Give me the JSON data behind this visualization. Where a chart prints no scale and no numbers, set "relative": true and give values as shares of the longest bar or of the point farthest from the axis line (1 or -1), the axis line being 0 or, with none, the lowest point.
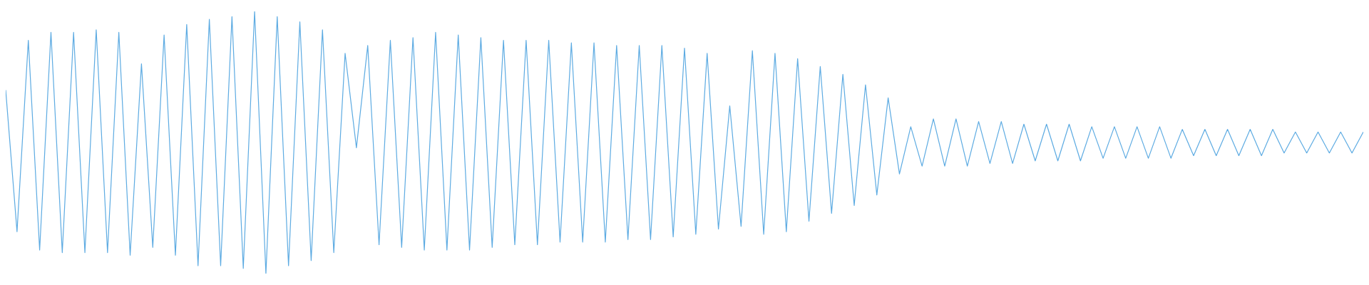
{
  "chart_data": {
    "type": "line",
    "relative": true,
    "color": "#5dabe2",
    "categories": [
      null,
      null,
      null,
      null,
      null,
      null,
      null,
      null,
      null,
      null,
      null,
      null,
      null,
      null,
      null,
      null,
      null,
      null,
      null,
      null,
      null,
      null,
      null,
      null,
      null,
      null,
      null,
      null,
      null,
      null,
      null,
      null,
      null,
      null,
      null,
      null,
      null,
      null,
      null,
      null,
      null,
      null,
      null,
      null,
      null,
      null,
      null,
      null,
      null,
      null,
      null,
      null,
      null,
      null,
      null,
      null,
      null,
      null,
      null,
      null,
      null,
      null,
      null,
      null,
      null,
      null,
      null,
      null,
      null,
      null,
      null,
      null,
      null,
      null,
      null,
      null,
      null,
      null,
      null,
      null,
      null,
      null,
      null,
      null,
      null,
      null,
      null,
      null,
      null,
      null,
      null,
      null,
      null,
      null,
      null,
      null,
      null,
      null,
      null,
      null,
      null,
      null,
      null,
      null,
      null,
      null,
      null,
      null,
      null,
      null,
      null,
      null,
      null,
      null,
      null,
      null,
      null,
      null,
      null,
      null,
      null
    ],
    "values": [
      0.7,
      0.16,
      0.89,
      0.09,
      0.92,
      0.08,
      0.92,
      0.08,
      0.93,
      0.08,
      0.92,
      0.07,
      0.8,
      0.1,
      0.91,
      0.07,
      0.95,
      0.03,
      0.97,
      0.03,
      0.98,
      0.02,
      1.0,
      0.0,
      0.98,
      0.03,
      0.96,
      0.05,
      0.93,
      0.08,
      0.84,
      0.48,
      0.87,
      0.11,
      0.89,
      0.1,
      0.9,
      0.09,
      0.92,
      0.09,
      0.91,
      0.09,
      0.9,
      0.1,
      0.89,
      0.11,
      0.89,
      0.11,
      0.89,
      0.12,
      0.88,
      0.12,
      0.88,
      0.12,
      0.87,
      0.13,
      0.87,
      0.13,
      0.87,
      0.14,
      0.86,
      0.15,
      0.84,
      0.17,
      0.64,
      0.18,
      0.85,
      0.15,
      0.84,
      0.16,
      0.82,
      0.2,
      0.79,
      0.23,
      0.76,
      0.26,
      0.72,
      0.3,
      0.67,
      0.38,
      0.56,
      0.41,
      0.59,
      0.41,
      0.59,
      0.41,
      0.58,
      0.42,
      0.58,
      0.42,
      0.57,
      0.43,
      0.57,
      0.43,
      0.57,
      0.43,
      0.56,
      0.44,
      0.56,
      0.44,
      0.56,
      0.44,
      0.56,
      0.44,
      0.55,
      0.45,
      0.55,
      0.45,
      0.55,
      0.45,
      0.55,
      0.45,
      0.55,
      0.46,
      0.54,
      0.46,
      0.54,
      0.46,
      0.54,
      0.46,
      0.54
    ]
  }
}
